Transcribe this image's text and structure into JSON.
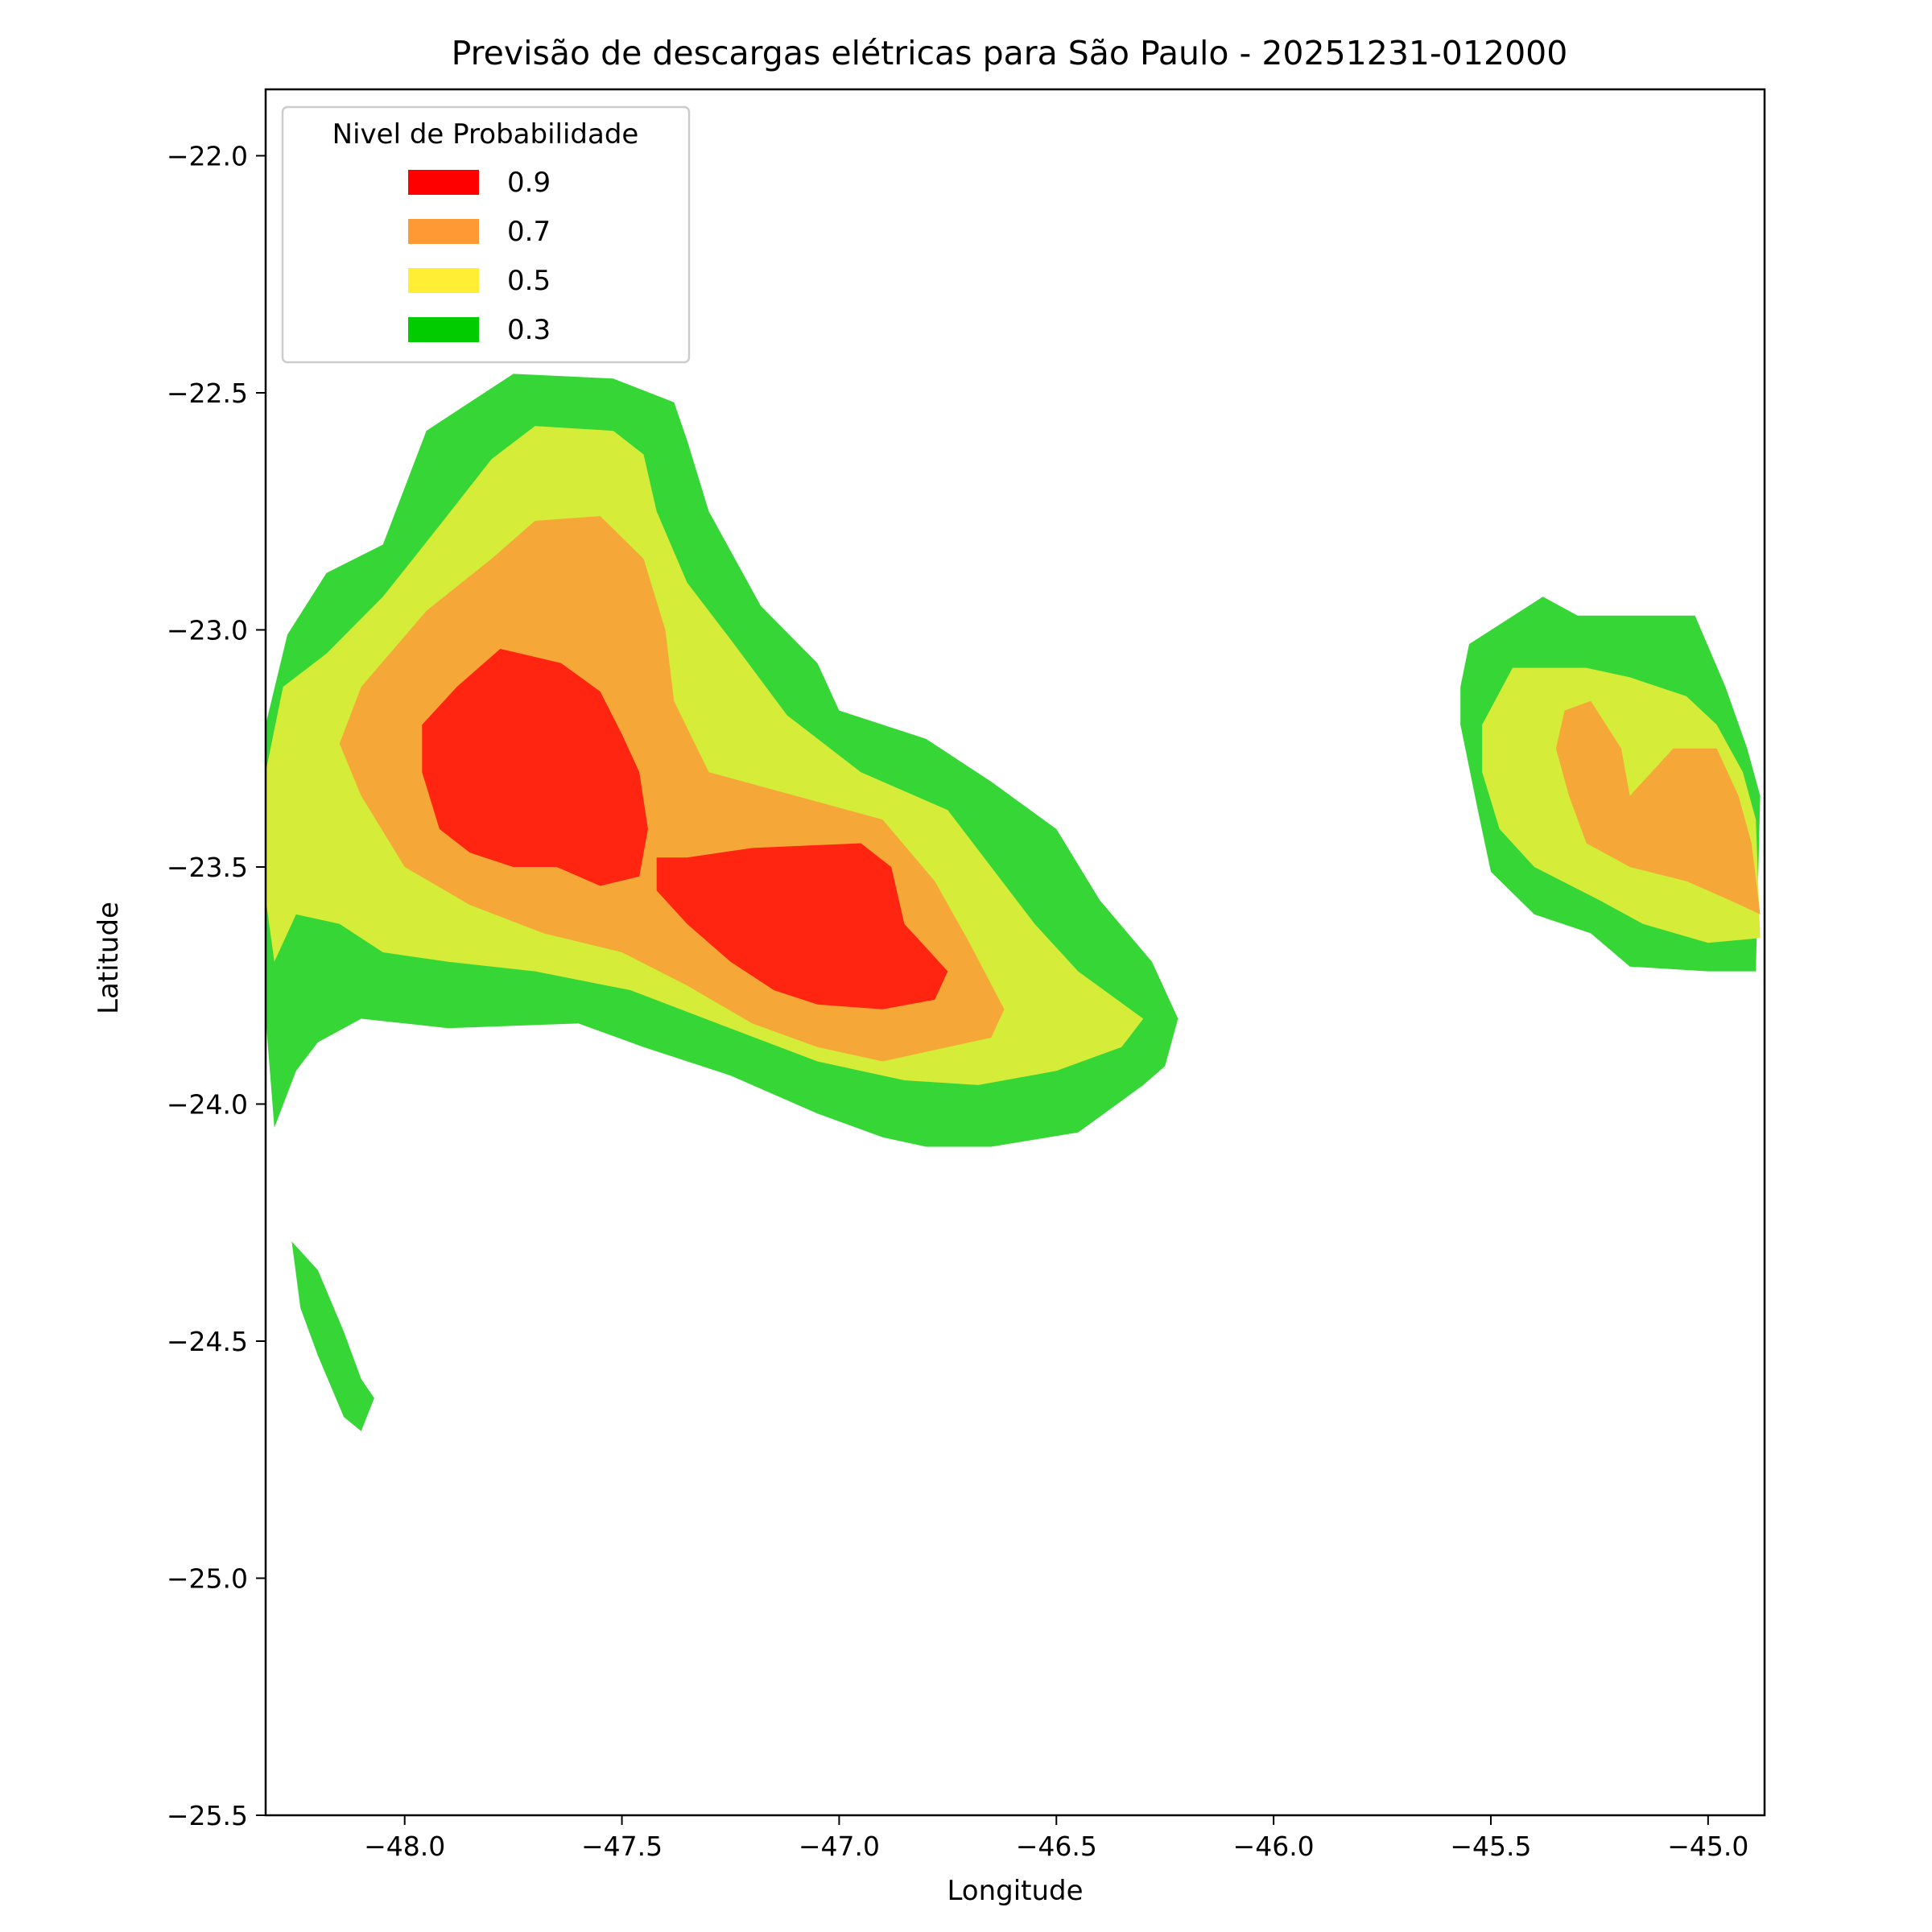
{
  "chart_data": {
    "type": "heatmap",
    "subtype": "filled-contour",
    "title": "Previsão de descargas elétricas para São Paulo - 20251231-012000",
    "xlabel": "Longitude",
    "ylabel": "Latitude",
    "xlim": [
      -48.32,
      -44.87
    ],
    "ylim": [
      -25.5,
      -21.86
    ],
    "x_ticks": [
      -48.0,
      -47.5,
      -47.0,
      -46.5,
      -46.0,
      -45.5,
      -45.0
    ],
    "y_ticks": [
      -22.0,
      -22.5,
      -23.0,
      -23.5,
      -24.0,
      -24.5,
      -25.0,
      -25.5
    ],
    "x_tick_labels": [
      "−48.0",
      "−47.5",
      "−47.0",
      "−46.5",
      "−46.0",
      "−45.5",
      "−45.0"
    ],
    "y_tick_labels": [
      "−22.0",
      "−22.5",
      "−23.0",
      "−23.5",
      "−24.0",
      "−24.5",
      "−25.0",
      "−25.5"
    ],
    "grid": false,
    "legend": {
      "title": "Nivel de Probabilidade",
      "placement": "upper-left",
      "items": [
        {
          "label": "0.9",
          "color": "#ff0000"
        },
        {
          "label": "0.7",
          "color": "#ff9933"
        },
        {
          "label": "0.5",
          "color": "#ffee33"
        },
        {
          "label": "0.3",
          "color": "#00cc00"
        }
      ]
    },
    "fill_colors": {
      "0.3": "#36d636",
      "0.5": "#d5ec38",
      "0.7": "#f5a837",
      "0.9": "#ff2510"
    },
    "regions": [
      {
        "level": "0.3",
        "points": [
          [
            -48.27,
            -23.01
          ],
          [
            -48.18,
            -22.88
          ],
          [
            -48.05,
            -22.82
          ],
          [
            -47.95,
            -22.58
          ],
          [
            -47.75,
            -22.46
          ],
          [
            -47.52,
            -22.47
          ],
          [
            -47.38,
            -22.52
          ],
          [
            -47.35,
            -22.6
          ],
          [
            -47.3,
            -22.75
          ],
          [
            -47.18,
            -22.95
          ],
          [
            -47.05,
            -23.07
          ],
          [
            -47.0,
            -23.17
          ],
          [
            -46.8,
            -23.23
          ],
          [
            -46.65,
            -23.32
          ],
          [
            -46.5,
            -23.42
          ],
          [
            -46.4,
            -23.57
          ],
          [
            -46.28,
            -23.7
          ],
          [
            -46.22,
            -23.82
          ],
          [
            -46.25,
            -23.92
          ],
          [
            -46.3,
            -23.96
          ],
          [
            -46.45,
            -24.06
          ],
          [
            -46.65,
            -24.09
          ],
          [
            -46.8,
            -24.09
          ],
          [
            -46.9,
            -24.07
          ],
          [
            -47.05,
            -24.02
          ],
          [
            -47.25,
            -23.94
          ],
          [
            -47.45,
            -23.88
          ],
          [
            -47.6,
            -23.83
          ],
          [
            -47.9,
            -23.84
          ],
          [
            -48.1,
            -23.82
          ],
          [
            -48.2,
            -23.87
          ],
          [
            -48.25,
            -23.93
          ],
          [
            -48.3,
            -24.05
          ],
          [
            -48.33,
            -23.7
          ],
          [
            -48.32,
            -23.2
          ]
        ]
      },
      {
        "level": "0.3",
        "points": [
          [
            -45.55,
            -23.03
          ],
          [
            -45.38,
            -22.93
          ],
          [
            -45.3,
            -22.97
          ],
          [
            -45.03,
            -22.97
          ],
          [
            -44.96,
            -23.12
          ],
          [
            -44.91,
            -23.25
          ],
          [
            -44.88,
            -23.35
          ],
          [
            -44.89,
            -23.72
          ],
          [
            -45.0,
            -23.72
          ],
          [
            -45.18,
            -23.71
          ],
          [
            -45.27,
            -23.64
          ],
          [
            -45.4,
            -23.6
          ],
          [
            -45.5,
            -23.51
          ],
          [
            -45.53,
            -23.38
          ],
          [
            -45.57,
            -23.2
          ],
          [
            -45.57,
            -23.12
          ]
        ]
      },
      {
        "level": "0.3",
        "points": [
          [
            -48.26,
            -24.29
          ],
          [
            -48.2,
            -24.35
          ],
          [
            -48.14,
            -24.48
          ],
          [
            -48.1,
            -24.58
          ],
          [
            -48.07,
            -24.62
          ],
          [
            -48.1,
            -24.69
          ],
          [
            -48.14,
            -24.66
          ],
          [
            -48.2,
            -24.53
          ],
          [
            -48.24,
            -24.43
          ]
        ]
      },
      {
        "level": "0.5",
        "points": [
          [
            -48.28,
            -23.12
          ],
          [
            -48.18,
            -23.05
          ],
          [
            -48.05,
            -22.93
          ],
          [
            -47.92,
            -22.78
          ],
          [
            -47.8,
            -22.64
          ],
          [
            -47.7,
            -22.57
          ],
          [
            -47.52,
            -22.58
          ],
          [
            -47.45,
            -22.63
          ],
          [
            -47.42,
            -22.75
          ],
          [
            -47.35,
            -22.9
          ],
          [
            -47.25,
            -23.02
          ],
          [
            -47.12,
            -23.18
          ],
          [
            -46.95,
            -23.3
          ],
          [
            -46.75,
            -23.38
          ],
          [
            -46.65,
            -23.5
          ],
          [
            -46.55,
            -23.62
          ],
          [
            -46.45,
            -23.72
          ],
          [
            -46.3,
            -23.82
          ],
          [
            -46.35,
            -23.88
          ],
          [
            -46.5,
            -23.93
          ],
          [
            -46.68,
            -23.96
          ],
          [
            -46.85,
            -23.95
          ],
          [
            -47.05,
            -23.91
          ],
          [
            -47.28,
            -23.83
          ],
          [
            -47.48,
            -23.76
          ],
          [
            -47.7,
            -23.72
          ],
          [
            -47.9,
            -23.7
          ],
          [
            -48.05,
            -23.68
          ],
          [
            -48.15,
            -23.62
          ],
          [
            -48.25,
            -23.6
          ],
          [
            -48.3,
            -23.7
          ],
          [
            -48.33,
            -23.5
          ],
          [
            -48.32,
            -23.3
          ]
        ]
      },
      {
        "level": "0.5",
        "points": [
          [
            -45.45,
            -23.08
          ],
          [
            -45.28,
            -23.08
          ],
          [
            -45.18,
            -23.1
          ],
          [
            -45.05,
            -23.14
          ],
          [
            -44.98,
            -23.2
          ],
          [
            -44.92,
            -23.3
          ],
          [
            -44.89,
            -23.4
          ],
          [
            -44.88,
            -23.65
          ],
          [
            -45.0,
            -23.66
          ],
          [
            -45.15,
            -23.62
          ],
          [
            -45.25,
            -23.57
          ],
          [
            -45.4,
            -23.5
          ],
          [
            -45.48,
            -23.42
          ],
          [
            -45.52,
            -23.3
          ],
          [
            -45.52,
            -23.2
          ]
        ]
      },
      {
        "level": "0.7",
        "points": [
          [
            -48.1,
            -23.12
          ],
          [
            -47.95,
            -22.96
          ],
          [
            -47.8,
            -22.85
          ],
          [
            -47.7,
            -22.77
          ],
          [
            -47.55,
            -22.76
          ],
          [
            -47.45,
            -22.85
          ],
          [
            -47.4,
            -23.0
          ],
          [
            -47.38,
            -23.15
          ],
          [
            -47.3,
            -23.3
          ],
          [
            -47.1,
            -23.35
          ],
          [
            -46.9,
            -23.4
          ],
          [
            -46.78,
            -23.53
          ],
          [
            -46.7,
            -23.66
          ],
          [
            -46.62,
            -23.8
          ],
          [
            -46.65,
            -23.86
          ],
          [
            -46.75,
            -23.88
          ],
          [
            -46.9,
            -23.91
          ],
          [
            -47.05,
            -23.88
          ],
          [
            -47.2,
            -23.83
          ],
          [
            -47.35,
            -23.75
          ],
          [
            -47.5,
            -23.68
          ],
          [
            -47.68,
            -23.64
          ],
          [
            -47.85,
            -23.58
          ],
          [
            -48.0,
            -23.5
          ],
          [
            -48.1,
            -23.35
          ],
          [
            -48.15,
            -23.24
          ]
        ]
      },
      {
        "level": "0.7",
        "points": [
          [
            -45.27,
            -23.15
          ],
          [
            -45.2,
            -23.25
          ],
          [
            -45.18,
            -23.35
          ],
          [
            -45.08,
            -23.25
          ],
          [
            -44.98,
            -23.25
          ],
          [
            -44.93,
            -23.35
          ],
          [
            -44.9,
            -23.45
          ],
          [
            -44.88,
            -23.6
          ],
          [
            -44.95,
            -23.57
          ],
          [
            -45.05,
            -23.53
          ],
          [
            -45.18,
            -23.5
          ],
          [
            -45.28,
            -23.45
          ],
          [
            -45.32,
            -23.35
          ],
          [
            -45.35,
            -23.25
          ],
          [
            -45.33,
            -23.17
          ]
        ]
      },
      {
        "level": "0.9",
        "points": [
          [
            -47.88,
            -23.12
          ],
          [
            -47.78,
            -23.04
          ],
          [
            -47.64,
            -23.07
          ],
          [
            -47.55,
            -23.13
          ],
          [
            -47.5,
            -23.22
          ],
          [
            -47.46,
            -23.3
          ],
          [
            -47.44,
            -23.42
          ],
          [
            -47.46,
            -23.52
          ],
          [
            -47.55,
            -23.54
          ],
          [
            -47.65,
            -23.5
          ],
          [
            -47.75,
            -23.5
          ],
          [
            -47.85,
            -23.47
          ],
          [
            -47.92,
            -23.42
          ],
          [
            -47.96,
            -23.3
          ],
          [
            -47.96,
            -23.2
          ]
        ]
      },
      {
        "level": "0.9",
        "points": [
          [
            -47.42,
            -23.48
          ],
          [
            -47.35,
            -23.48
          ],
          [
            -47.2,
            -23.46
          ],
          [
            -46.95,
            -23.45
          ],
          [
            -46.88,
            -23.5
          ],
          [
            -46.85,
            -23.62
          ],
          [
            -46.8,
            -23.67
          ],
          [
            -46.75,
            -23.72
          ],
          [
            -46.78,
            -23.78
          ],
          [
            -46.9,
            -23.8
          ],
          [
            -47.05,
            -23.79
          ],
          [
            -47.15,
            -23.76
          ],
          [
            -47.25,
            -23.7
          ],
          [
            -47.35,
            -23.62
          ],
          [
            -47.42,
            -23.55
          ]
        ]
      }
    ]
  }
}
